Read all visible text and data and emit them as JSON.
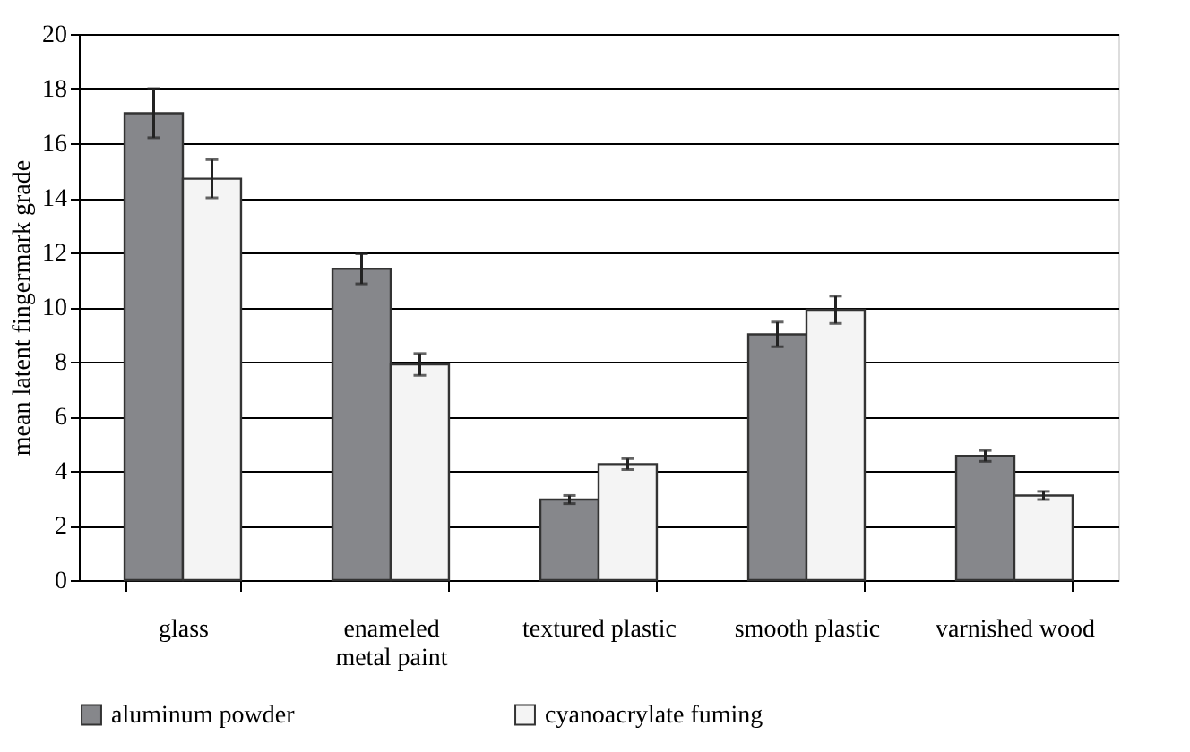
{
  "chart_data": {
    "type": "bar",
    "ylabel": "mean latent fingermark grade",
    "categories": [
      "glass",
      "enameled metal paint",
      "textured plastic",
      "smooth plastic",
      "varnished wood"
    ],
    "series": [
      {
        "name": "aluminum powder",
        "color": "#86878b",
        "values": [
          17.1,
          11.4,
          2.95,
          9.0,
          4.55
        ],
        "errors": [
          0.9,
          0.55,
          0.15,
          0.45,
          0.2
        ]
      },
      {
        "name": "cyanoacrylate fuming",
        "color": "#f4f4f4",
        "values": [
          14.7,
          7.9,
          4.25,
          9.9,
          3.1
        ],
        "errors": [
          0.7,
          0.4,
          0.2,
          0.5,
          0.15
        ]
      }
    ],
    "ylim": [
      0,
      20
    ],
    "yticks": [
      0,
      2,
      4,
      6,
      8,
      10,
      12,
      14,
      16,
      18,
      20
    ],
    "grid": "y",
    "legend": "bottom"
  }
}
